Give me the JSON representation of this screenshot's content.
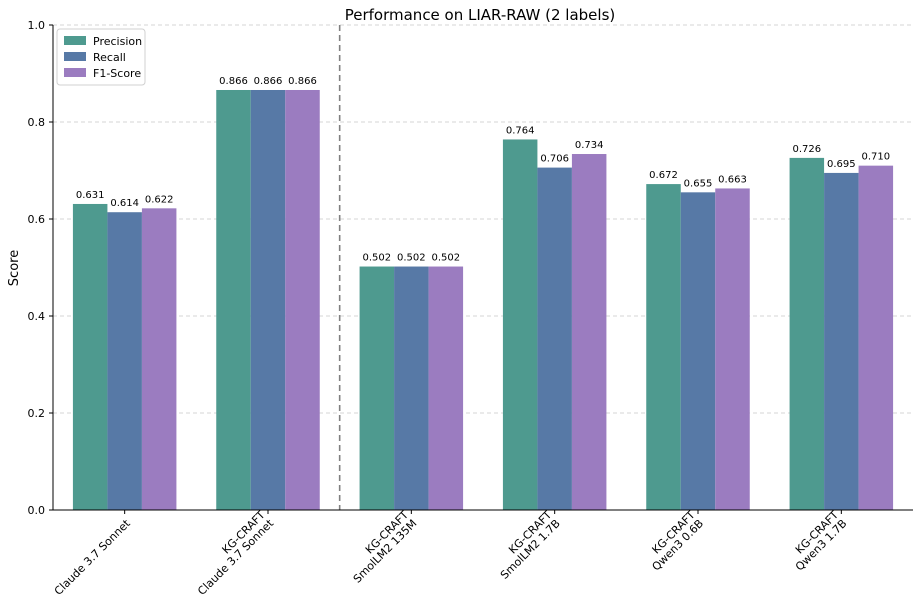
{
  "chart_data": {
    "type": "bar",
    "title": "Performance on LIAR-RAW (2 labels)",
    "xlabel": "",
    "ylabel": "Score",
    "ylim": [
      0,
      1.0
    ],
    "yticks": [
      "0.0",
      "0.2",
      "0.4",
      "0.6",
      "0.8",
      "1.0"
    ],
    "grid": "y-dashed",
    "legend": "top-left",
    "categories": [
      [
        "Claude 3.7 Sonnet"
      ],
      [
        "KG-CRAFT",
        "Claude 3.7 Sonnet"
      ],
      [
        "KG-CRAFT",
        "SmolLM2 135M"
      ],
      [
        "KG-CRAFT",
        "SmolLM2 1.7B"
      ],
      [
        "KG-CRAFT",
        "Qwen3 0.6B"
      ],
      [
        "KG-CRAFT",
        "Qwen3 1.7B"
      ]
    ],
    "separator_after_category": 1,
    "series": [
      {
        "name": "Precision",
        "color": "#4e9a8f",
        "values": [
          0.631,
          0.866,
          0.502,
          0.764,
          0.672,
          0.726
        ],
        "labels": [
          "0.631",
          "0.866",
          "0.502",
          "0.764",
          "0.672",
          "0.726"
        ]
      },
      {
        "name": "Recall",
        "color": "#5779a6",
        "values": [
          0.614,
          0.866,
          0.502,
          0.706,
          0.655,
          0.695
        ],
        "labels": [
          "0.614",
          "0.866",
          "0.502",
          "0.706",
          "0.655",
          "0.695"
        ]
      },
      {
        "name": "F1-Score",
        "color": "#9b7cc0",
        "values": [
          0.622,
          0.866,
          0.502,
          0.734,
          0.663,
          0.71
        ],
        "labels": [
          "0.622",
          "0.866",
          "0.502",
          "0.734",
          "0.663",
          "0.710"
        ]
      }
    ]
  }
}
